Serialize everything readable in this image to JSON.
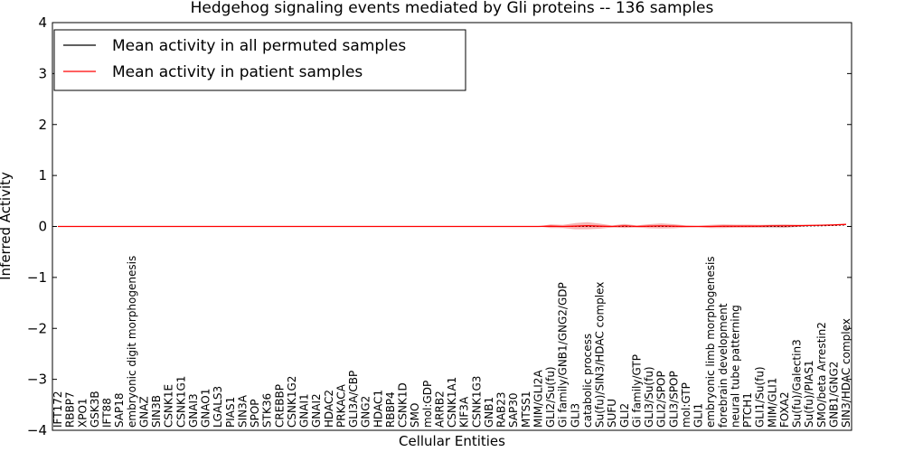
{
  "chart_data": {
    "type": "line",
    "title": "Hedgehog signaling events mediated by Gli proteins -- 136 samples",
    "xlabel": "Cellular Entities",
    "ylabel": "Inferred Activity",
    "ylim": [
      -4,
      4
    ],
    "yticks": [
      -4,
      -3,
      -2,
      -1,
      0,
      1,
      2,
      3,
      4
    ],
    "yticklabels": [
      "−4",
      "−3",
      "−2",
      "−1",
      "0",
      "1",
      "2",
      "3",
      "4"
    ],
    "legend_position": "top-left",
    "grid": false,
    "categories": [
      "IFT172",
      "RBBP7",
      "XPO1",
      "GSK3B",
      "IFT88",
      "SAP18",
      "embryonic digit morphogenesis",
      "GNAZ",
      "SIN3B",
      "CSNK1E",
      "CSNK1G1",
      "GNAI3",
      "GNAO1",
      "LGALS3",
      "PIAS1",
      "SIN3A",
      "SPOP",
      "STK36",
      "CREBBP",
      "CSNK1G2",
      "GNAI1",
      "GNAI2",
      "HDAC2",
      "PRKACA",
      "GLI3A/CBP",
      "GNG2",
      "HDAC1",
      "RBBP4",
      "CSNK1D",
      "SMO",
      "mol:GDP",
      "ARRB2",
      "CSNK1A1",
      "KIF3A",
      "CSNK1G3",
      "GNB1",
      "RAB23",
      "SAP30",
      "MTSS1",
      "MIM/GLI2A",
      "GLI2/Su(fu)",
      "Gi family/GNB1/GNG2/GDP",
      "GLI3",
      "catabolic process",
      "Su(fu)/SIN3/HDAC complex",
      "SUFU",
      "GLI2",
      "Gi family/GTP",
      "GLI3/Su(fu)",
      "GLI2/SPOP",
      "GLI3/SPOP",
      "mol:GTP",
      "GLI1",
      "embryonic limb morphogenesis",
      "forebrain development",
      "neural tube patterning",
      "PTCH1",
      "GLI1/Su(fu)",
      "MIM/GLI1",
      "FOXA2",
      "Su(fu)/Galectin3",
      "Su(fu)/PIAS1",
      "SMO/beta Arrestin2",
      "GNB1/GNG2",
      "SIN3/HDAC complex"
    ],
    "series": [
      {
        "name": "Mean activity in all permuted samples",
        "color": "#000000",
        "values": [
          0,
          0,
          0,
          0,
          0,
          0,
          0,
          0,
          0,
          0,
          0,
          0,
          0,
          0,
          0,
          0,
          0,
          0,
          0,
          0,
          0,
          0,
          0,
          0,
          0,
          0,
          0,
          0,
          0,
          0,
          0,
          0,
          0,
          0,
          0,
          0,
          0,
          0,
          0,
          0,
          0,
          0,
          0,
          0,
          0,
          0,
          0,
          0,
          0,
          0,
          0,
          0,
          0,
          0,
          0,
          0,
          0,
          0,
          0,
          0,
          0.005,
          0.01,
          0.015,
          0.02,
          0.03
        ],
        "band_half_width": [
          0,
          0,
          0,
          0,
          0,
          0,
          0,
          0,
          0,
          0,
          0,
          0,
          0,
          0,
          0,
          0,
          0,
          0,
          0,
          0,
          0,
          0,
          0,
          0,
          0,
          0,
          0,
          0,
          0,
          0,
          0,
          0,
          0,
          0,
          0,
          0,
          0,
          0,
          0,
          0,
          0,
          0,
          0,
          0,
          0,
          0,
          0,
          0,
          0,
          0,
          0,
          0,
          0,
          0,
          0.01,
          0.01,
          0.01,
          0.02,
          0.03,
          0.03,
          0.02,
          0.01,
          0.01,
          0.01,
          0
        ]
      },
      {
        "name": "Mean activity in patient samples",
        "color": "#ff0000",
        "values": [
          0,
          0,
          0,
          0,
          0,
          0,
          0,
          0,
          0,
          0,
          0,
          0,
          0,
          0,
          0,
          0,
          0,
          0,
          0,
          0,
          0,
          0,
          0,
          0,
          0,
          0,
          0,
          0,
          0,
          0,
          0,
          0,
          0,
          0,
          0,
          0,
          0,
          0,
          0,
          0,
          0.005,
          0,
          0.005,
          0.015,
          0.005,
          0,
          0.01,
          0,
          0.005,
          0.01,
          0.005,
          0,
          0,
          0,
          0.005,
          0.005,
          0.005,
          0.005,
          0.01,
          0.01,
          0.015,
          0.02,
          0.025,
          0.03,
          0.04
        ],
        "band_half_width": [
          0,
          0,
          0,
          0,
          0,
          0,
          0,
          0,
          0,
          0,
          0,
          0,
          0,
          0,
          0,
          0,
          0,
          0,
          0,
          0,
          0,
          0,
          0,
          0,
          0,
          0,
          0,
          0,
          0,
          0,
          0,
          0,
          0,
          0,
          0,
          0,
          0,
          0,
          0,
          0,
          0.035,
          0.03,
          0.06,
          0.07,
          0.05,
          0.02,
          0.04,
          0.02,
          0.04,
          0.05,
          0.04,
          0.02,
          0.015,
          0.03,
          0.035,
          0.03,
          0.03,
          0.025,
          0.025,
          0.03,
          0.02,
          0.01,
          0.005,
          0,
          0
        ]
      }
    ]
  }
}
